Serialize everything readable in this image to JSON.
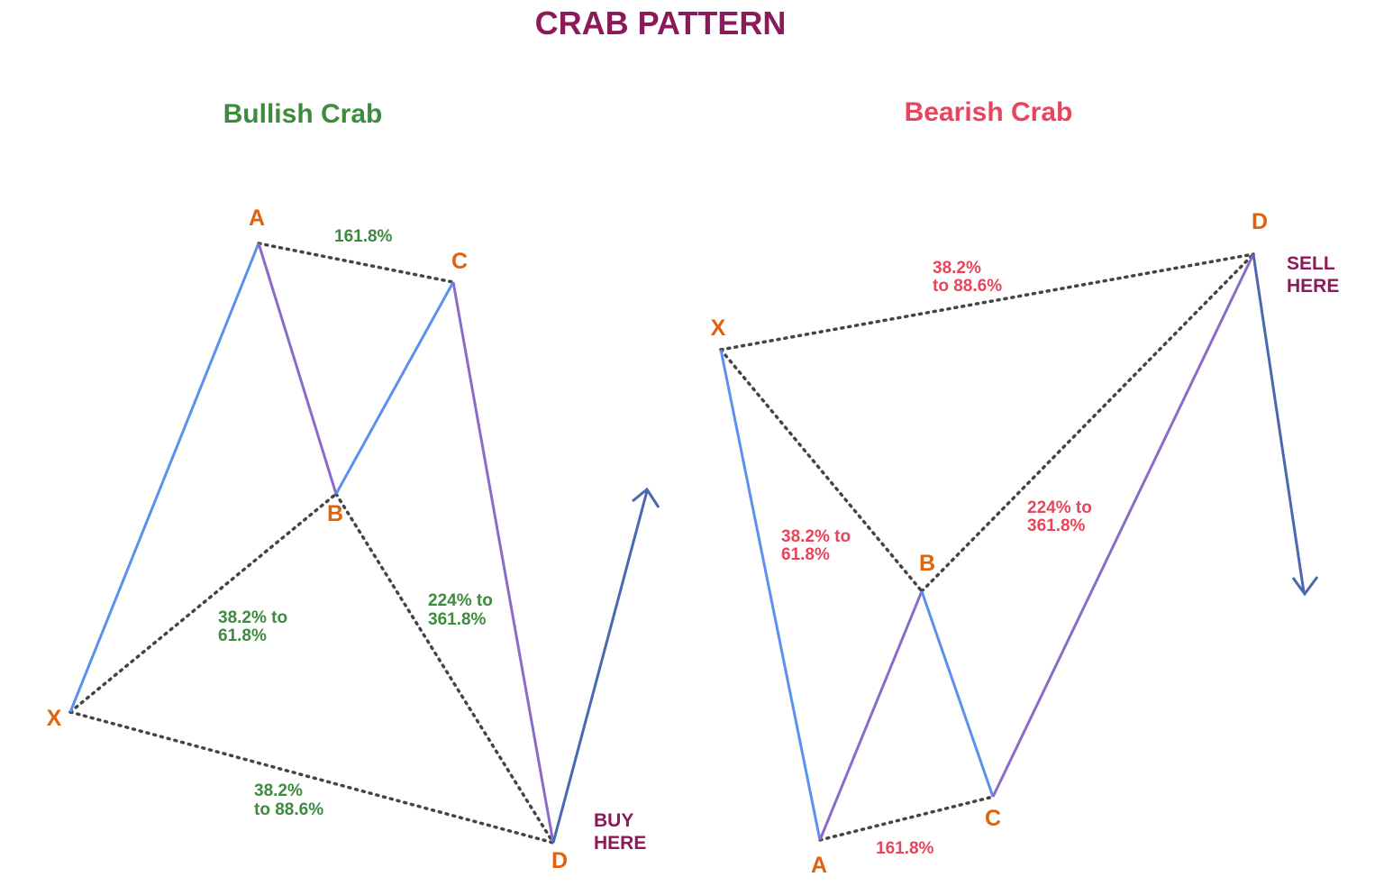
{
  "title": "CRAB PATTERN",
  "panels": [
    {
      "title": "Bullish Crab",
      "points": [
        "X",
        "A",
        "B",
        "C",
        "D"
      ],
      "ratios": [
        [
          "161.8%"
        ],
        [
          "38.2% to",
          "61.8%"
        ],
        [
          "224% to",
          "361.8%"
        ],
        [
          "38.2%",
          "to 88.6%"
        ]
      ],
      "action": [
        "BUY",
        "HERE"
      ]
    },
    {
      "title": "Bearish Crab",
      "points": [
        "X",
        "A",
        "B",
        "C",
        "D"
      ],
      "ratios": [
        [
          "161.8%"
        ],
        [
          "38.2% to",
          "61.8%"
        ],
        [
          "224% to",
          "361.8%"
        ],
        [
          "38.2%",
          "to 88.6%"
        ]
      ],
      "action": [
        "SELL",
        "HERE"
      ]
    }
  ]
}
